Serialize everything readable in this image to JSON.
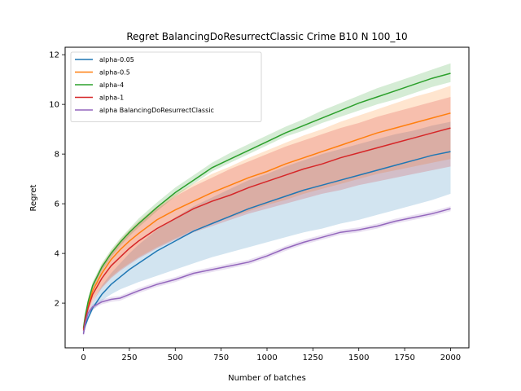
{
  "chart_data": {
    "type": "line",
    "title": "Regret BalancingDoResurrectClassic Crime B10 N 100_10",
    "xlabel": "Number of batches",
    "ylabel": "Regret",
    "xlim": [
      -100,
      2100
    ],
    "ylim": [
      0.2,
      12.3
    ],
    "xticks": [
      0,
      250,
      500,
      750,
      1000,
      1250,
      1500,
      1750,
      2000
    ],
    "yticks": [
      2,
      4,
      6,
      8,
      10,
      12
    ],
    "legend_position": "upper-left",
    "grid": false,
    "x": [
      0,
      10,
      25,
      50,
      100,
      150,
      200,
      250,
      300,
      400,
      500,
      600,
      700,
      800,
      900,
      1000,
      1100,
      1200,
      1300,
      1400,
      1500,
      1600,
      1700,
      1800,
      1900,
      2000
    ],
    "series": [
      {
        "name": "alpha-0.05",
        "color": "#1f77b4",
        "values": [
          0.8,
          1.1,
          1.4,
          1.8,
          2.35,
          2.75,
          3.05,
          3.35,
          3.6,
          4.1,
          4.5,
          4.9,
          5.2,
          5.5,
          5.8,
          6.05,
          6.3,
          6.55,
          6.75,
          6.95,
          7.15,
          7.35,
          7.55,
          7.75,
          7.95,
          8.1
        ],
        "lower": [
          0.75,
          1.0,
          1.3,
          1.7,
          2.1,
          2.35,
          2.55,
          2.7,
          2.85,
          3.1,
          3.35,
          3.6,
          3.85,
          4.05,
          4.25,
          4.45,
          4.65,
          4.85,
          5.0,
          5.2,
          5.35,
          5.55,
          5.75,
          5.95,
          6.15,
          6.4
        ],
        "upper": [
          0.9,
          1.25,
          1.6,
          2.05,
          2.7,
          3.2,
          3.6,
          4.0,
          4.35,
          4.95,
          5.45,
          5.9,
          6.25,
          6.6,
          6.95,
          7.2,
          7.5,
          7.75,
          8.0,
          8.2,
          8.4,
          8.6,
          8.8,
          8.95,
          9.15,
          9.3
        ]
      },
      {
        "name": "alpha-0.5",
        "color": "#ff7f0e",
        "values": [
          0.95,
          1.4,
          1.9,
          2.5,
          3.2,
          3.75,
          4.15,
          4.5,
          4.8,
          5.35,
          5.75,
          6.1,
          6.45,
          6.75,
          7.05,
          7.3,
          7.6,
          7.85,
          8.1,
          8.35,
          8.6,
          8.85,
          9.05,
          9.25,
          9.45,
          9.65
        ],
        "lower": [
          0.85,
          1.2,
          1.65,
          2.15,
          2.65,
          3.05,
          3.35,
          3.6,
          3.85,
          4.25,
          4.6,
          4.95,
          5.2,
          5.45,
          5.7,
          5.95,
          6.15,
          6.4,
          6.6,
          6.8,
          7.0,
          7.2,
          7.35,
          7.5,
          7.65,
          7.8
        ],
        "upper": [
          1.1,
          1.6,
          2.15,
          2.8,
          3.55,
          4.1,
          4.55,
          4.95,
          5.3,
          5.9,
          6.4,
          6.8,
          7.2,
          7.5,
          7.85,
          8.15,
          8.45,
          8.75,
          9.0,
          9.3,
          9.55,
          9.8,
          10.05,
          10.3,
          10.5,
          10.75
        ]
      },
      {
        "name": "alpha-4",
        "color": "#2ca02c",
        "values": [
          1.0,
          1.5,
          2.05,
          2.7,
          3.45,
          4.0,
          4.45,
          4.85,
          5.2,
          5.85,
          6.45,
          6.95,
          7.45,
          7.8,
          8.15,
          8.5,
          8.85,
          9.15,
          9.45,
          9.75,
          10.05,
          10.3,
          10.55,
          10.8,
          11.05,
          11.25
        ],
        "lower": [
          0.9,
          1.35,
          1.9,
          2.55,
          3.3,
          3.85,
          4.3,
          4.7,
          5.05,
          5.7,
          6.3,
          6.8,
          7.3,
          7.65,
          8.0,
          8.35,
          8.7,
          8.95,
          9.25,
          9.5,
          9.75,
          10.0,
          10.2,
          10.45,
          10.7,
          10.9
        ],
        "upper": [
          1.15,
          1.65,
          2.2,
          2.85,
          3.6,
          4.15,
          4.6,
          5.0,
          5.4,
          6.05,
          6.65,
          7.15,
          7.65,
          8.05,
          8.4,
          8.75,
          9.1,
          9.4,
          9.75,
          10.05,
          10.35,
          10.65,
          10.9,
          11.15,
          11.4,
          11.65
        ]
      },
      {
        "name": "alpha-1",
        "color": "#d62728",
        "values": [
          0.9,
          1.35,
          1.8,
          2.35,
          3.0,
          3.5,
          3.85,
          4.2,
          4.5,
          5.0,
          5.4,
          5.8,
          6.1,
          6.35,
          6.65,
          6.9,
          7.15,
          7.4,
          7.6,
          7.85,
          8.05,
          8.25,
          8.45,
          8.65,
          8.85,
          9.05
        ],
        "lower": [
          0.8,
          1.2,
          1.6,
          2.05,
          2.6,
          3.0,
          3.3,
          3.55,
          3.8,
          4.2,
          4.55,
          4.85,
          5.1,
          5.35,
          5.6,
          5.8,
          6.0,
          6.2,
          6.4,
          6.55,
          6.75,
          6.9,
          7.05,
          7.2,
          7.35,
          7.5
        ],
        "upper": [
          1.05,
          1.55,
          2.05,
          2.7,
          3.45,
          4.0,
          4.45,
          4.85,
          5.2,
          5.8,
          6.3,
          6.7,
          7.05,
          7.4,
          7.7,
          8.0,
          8.3,
          8.55,
          8.8,
          9.05,
          9.25,
          9.5,
          9.7,
          9.9,
          10.1,
          10.3
        ]
      },
      {
        "name": "alpha BalancingDoResurrectClassic",
        "color": "#9467bd",
        "values": [
          0.75,
          1.2,
          1.6,
          1.85,
          2.05,
          2.15,
          2.2,
          2.35,
          2.5,
          2.75,
          2.95,
          3.2,
          3.35,
          3.5,
          3.65,
          3.9,
          4.2,
          4.45,
          4.65,
          4.85,
          4.95,
          5.1,
          5.3,
          5.45,
          5.6,
          5.8
        ],
        "lower": [
          0.65,
          1.1,
          1.5,
          1.75,
          1.95,
          2.05,
          2.1,
          2.25,
          2.4,
          2.65,
          2.85,
          3.1,
          3.25,
          3.4,
          3.55,
          3.8,
          4.1,
          4.35,
          4.55,
          4.75,
          4.85,
          5.0,
          5.2,
          5.35,
          5.5,
          5.7
        ],
        "upper": [
          0.85,
          1.3,
          1.7,
          1.95,
          2.15,
          2.25,
          2.3,
          2.45,
          2.6,
          2.85,
          3.05,
          3.3,
          3.45,
          3.6,
          3.75,
          4.0,
          4.3,
          4.55,
          4.75,
          4.95,
          5.05,
          5.2,
          5.4,
          5.55,
          5.7,
          5.9
        ]
      }
    ]
  }
}
